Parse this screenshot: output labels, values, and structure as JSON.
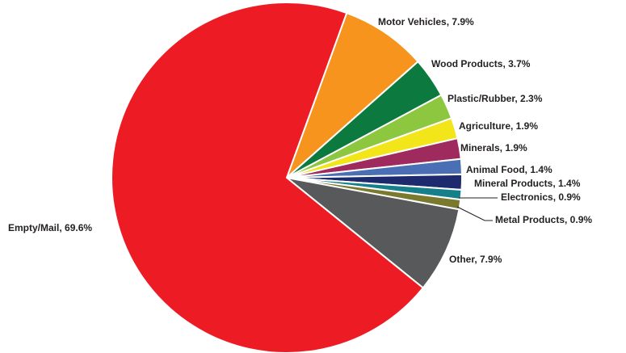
{
  "chart_data": {
    "type": "pie",
    "labels": [
      "Motor Vehicles, 7.9%",
      "Wood Products, 3.7%",
      "Plastic/Rubber, 2.3%",
      "Agriculture, 1.9%",
      "Minerals, 1.9%",
      "Animal Food, 1.4%",
      "Mineral Products, 1.4%",
      "Electronics, 0.9%",
      "Metal Products, 0.9%",
      "Other, 7.9%",
      "Empty/Mail, 69.6%"
    ],
    "values": [
      7.9,
      3.7,
      2.3,
      1.9,
      1.9,
      1.4,
      1.4,
      0.9,
      0.9,
      7.9,
      69.6
    ],
    "colors": [
      "#f7941d",
      "#0c7a3e",
      "#8dc63f",
      "#f2e51a",
      "#9e2a5e",
      "#4a6fb5",
      "#1d2a6e",
      "#16808a",
      "#7a7a2e",
      "#58595b",
      "#ed1c24"
    ]
  }
}
